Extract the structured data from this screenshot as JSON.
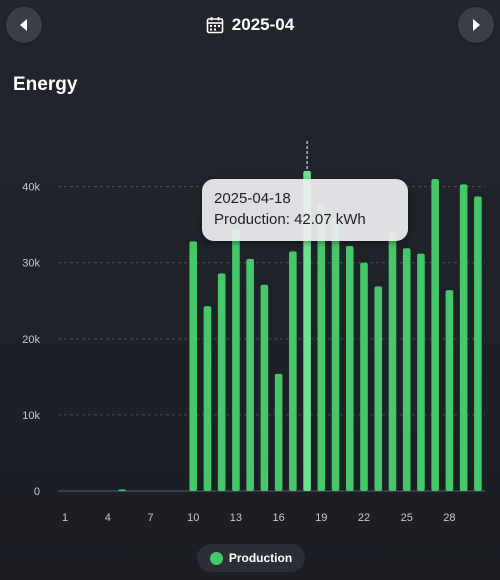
{
  "header": {
    "month": "2025-04",
    "calendar_icon": "calendar-icon",
    "prev_icon": "chevron-left-icon",
    "next_icon": "chevron-right-icon"
  },
  "section": {
    "title": "Energy"
  },
  "colors": {
    "bar": "#46c86a",
    "bar_selected": "#6fe08f",
    "grid": "#4a4e57"
  },
  "tooltip": {
    "date": "2025-04-18",
    "series_label": "Production:",
    "value_text": "42.07 kWh"
  },
  "legend": {
    "label": "Production"
  },
  "chart_data": {
    "type": "bar",
    "categories": [
      1,
      2,
      3,
      4,
      5,
      6,
      7,
      8,
      9,
      10,
      11,
      12,
      13,
      14,
      15,
      16,
      17,
      18,
      19,
      20,
      21,
      22,
      23,
      24,
      25,
      26,
      27,
      28,
      29,
      30
    ],
    "x_tick_labels": [
      "1",
      "4",
      "7",
      "10",
      "13",
      "16",
      "19",
      "22",
      "25",
      "28"
    ],
    "y_tick_labels": [
      "0",
      "10k",
      "20k",
      "30k",
      "40k"
    ],
    "ylim": [
      0,
      46000
    ],
    "grid": true,
    "legend_position": "bottom-center",
    "selected_day": 18,
    "series": [
      {
        "name": "Production",
        "values": [
          0,
          0,
          0,
          0,
          100,
          0,
          0,
          0,
          0,
          32800,
          24300,
          28600,
          34400,
          30500,
          27100,
          15400,
          31500,
          42070,
          37700,
          35900,
          32200,
          30000,
          26900,
          34000,
          31900,
          31200,
          41000,
          26400,
          40300,
          38700
        ]
      }
    ]
  }
}
